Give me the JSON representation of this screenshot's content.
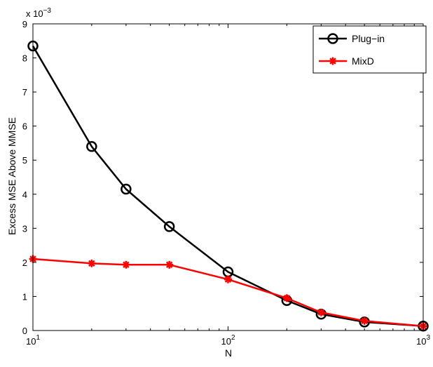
{
  "chart_data": {
    "type": "line",
    "xlabel": "N",
    "ylabel": "Excess MSE Above MMSE",
    "x_scale": "log",
    "xlim": [
      10,
      1000
    ],
    "ylim": [
      0,
      0.009
    ],
    "y_multiplier_label": "x 10",
    "y_multiplier_exp": "−3",
    "x_tick_labels": [
      {
        "value": 10,
        "base": "10",
        "exp": "1"
      },
      {
        "value": 100,
        "base": "10",
        "exp": "2"
      },
      {
        "value": 1000,
        "base": "10",
        "exp": "3"
      }
    ],
    "y_tick_labels": [
      "0",
      "1",
      "2",
      "3",
      "4",
      "5",
      "6",
      "7",
      "8",
      "9"
    ],
    "grid": false,
    "legend_position": "top-right",
    "x": [
      10,
      20,
      30,
      50,
      100,
      200,
      300,
      500,
      1000
    ],
    "series": [
      {
        "name": "Plug−in",
        "color": "#000000",
        "marker": "circle",
        "values": [
          0.00835,
          0.0054,
          0.00415,
          0.00305,
          0.00172,
          0.00088,
          0.00048,
          0.00025,
          0.00013
        ]
      },
      {
        "name": "MixD",
        "color": "#ff0000",
        "marker": "asterisk",
        "values": [
          0.0021,
          0.00197,
          0.00193,
          0.00193,
          0.0015,
          0.00095,
          0.00053,
          0.00028,
          0.00013
        ]
      }
    ]
  }
}
